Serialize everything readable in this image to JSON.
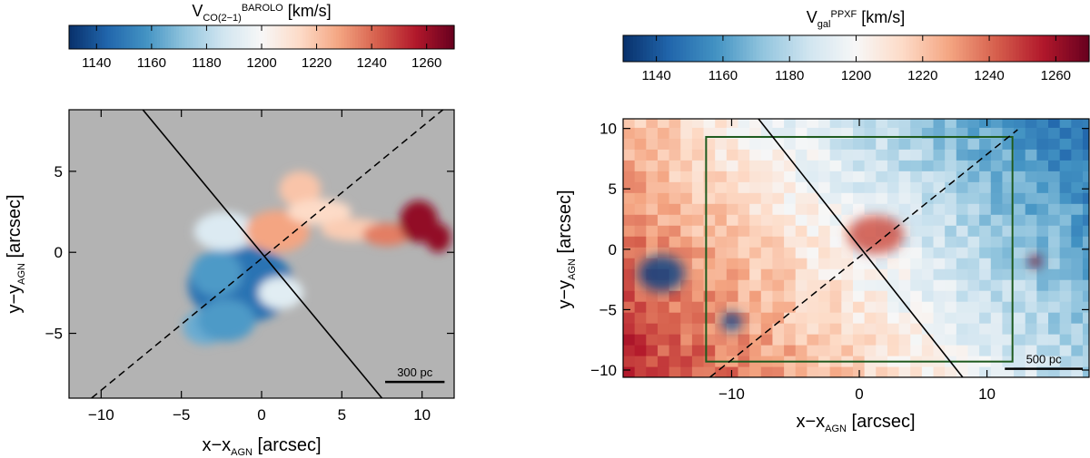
{
  "colors": {
    "cmap": [
      "#08306b",
      "#2166ac",
      "#4393c3",
      "#92c5de",
      "#d1e5f0",
      "#f7f7f7",
      "#fddbc7",
      "#f4a582",
      "#d6604d",
      "#b2182b",
      "#67001f"
    ],
    "background_left": "#b3b3b3",
    "box": "#1e5a1e"
  },
  "chart_data": [
    {
      "type": "heatmap",
      "panel": "left",
      "colorbar": {
        "title_main": "V",
        "title_sub": "CO(2−1)",
        "title_sup": "BAROLO",
        "title_unit": " [km/s]",
        "range": [
          1130,
          1270
        ],
        "ticks": [
          1140,
          1160,
          1180,
          1200,
          1220,
          1240,
          1260
        ],
        "tick_labels": [
          "1140",
          "1160",
          "1180",
          "1200",
          "1220",
          "1240",
          "1260"
        ]
      },
      "xlabel": {
        "main": "x−x",
        "sub": "AGN",
        "unit": " [arcsec]"
      },
      "ylabel": {
        "main": "y−y",
        "sub": "AGN",
        "unit": " [arcsec]"
      },
      "xlim": [
        -12,
        12
      ],
      "ylim": [
        -9,
        8.8
      ],
      "xticks": [
        -10,
        -5,
        0,
        5,
        10
      ],
      "xtick_labels": [
        "−10",
        "−5",
        "0",
        "5",
        "10"
      ],
      "yticks": [
        -5,
        0,
        5
      ],
      "ytick_labels": [
        "−5",
        "0",
        "5"
      ],
      "solid_line": [
        [
          -7.4,
          8.8
        ],
        [
          7.5,
          -9.0
        ]
      ],
      "dashed_line": [
        [
          -10.6,
          -9.0
        ],
        [
          11.3,
          8.8
        ]
      ],
      "scalebar": {
        "label": "300 pc",
        "x_range": [
          7.7,
          11.4
        ],
        "y": -8.0
      },
      "blobs": [
        {
          "x": -1.3,
          "y": -2.0,
          "rx": 3.3,
          "ry": 2.4,
          "value": 1148
        },
        {
          "x": -2.8,
          "y": -1.3,
          "rx": 1.6,
          "ry": 1.4,
          "value": 1160
        },
        {
          "x": -3.5,
          "y": -4.6,
          "rx": 1.4,
          "ry": 1.1,
          "value": 1165
        },
        {
          "x": -2.2,
          "y": -4.2,
          "rx": 1.8,
          "ry": 1.3,
          "value": 1160
        },
        {
          "x": 1.2,
          "y": -2.5,
          "rx": 1.4,
          "ry": 1.0,
          "value": 1192
        },
        {
          "x": -2.3,
          "y": 1.3,
          "rx": 1.9,
          "ry": 1.2,
          "value": 1190
        },
        {
          "x": 1.0,
          "y": 1.3,
          "rx": 2.0,
          "ry": 1.3,
          "value": 1228
        },
        {
          "x": 2.4,
          "y": 3.9,
          "rx": 1.3,
          "ry": 1.1,
          "value": 1220
        },
        {
          "x": 3.6,
          "y": 2.5,
          "rx": 2.0,
          "ry": 0.8,
          "value": 1214
        },
        {
          "x": 5.7,
          "y": 1.4,
          "rx": 2.0,
          "ry": 0.7,
          "value": 1218
        },
        {
          "x": 7.8,
          "y": 1.1,
          "rx": 1.5,
          "ry": 0.7,
          "value": 1236
        },
        {
          "x": 9.8,
          "y": 1.9,
          "rx": 1.2,
          "ry": 1.3,
          "value": 1262
        },
        {
          "x": 11.0,
          "y": 0.9,
          "rx": 0.8,
          "ry": 0.9,
          "value": 1262
        }
      ]
    },
    {
      "type": "heatmap",
      "panel": "right",
      "colorbar": {
        "title_main": "V",
        "title_sub": "gal",
        "title_sup": "PPXF",
        "title_unit": " [km/s]",
        "range": [
          1130,
          1270
        ],
        "ticks": [
          1140,
          1160,
          1180,
          1200,
          1220,
          1240,
          1260
        ],
        "tick_labels": [
          "1140",
          "1160",
          "1180",
          "1200",
          "1220",
          "1240",
          "1260"
        ]
      },
      "xlabel": {
        "main": "x−x",
        "sub": "AGN",
        "unit": " [arcsec]"
      },
      "ylabel": {
        "main": "y−y",
        "sub": "AGN",
        "unit": " [arcsec]"
      },
      "xlim": [
        -18.5,
        18.0
      ],
      "ylim": [
        -10.6,
        10.8
      ],
      "xticks": [
        -10,
        0,
        10
      ],
      "xtick_labels": [
        "−10",
        "0",
        "10"
      ],
      "yticks": [
        -10,
        -5,
        0,
        5,
        10
      ],
      "ytick_labels": [
        "−10",
        "−5",
        "0",
        "5",
        "10"
      ],
      "solid_line": [
        [
          -7.9,
          10.8
        ],
        [
          8.1,
          -10.6
        ]
      ],
      "dashed_line": [
        [
          -11.7,
          -10.6
        ],
        [
          12.4,
          9.9
        ]
      ],
      "box": {
        "x": [
          -12,
          12
        ],
        "y": [
          -9.3,
          9.3
        ]
      },
      "scalebar": {
        "label": "500 pc",
        "x_range": [
          11.4,
          17.5
        ],
        "y": -9.9
      },
      "hotspots": [
        {
          "x": 1.3,
          "y": 1.2,
          "rx": 2.2,
          "ry": 1.6,
          "value": 1245
        },
        {
          "x": 13.8,
          "y": -1.0,
          "rx": 0.5,
          "ry": 0.5,
          "value": 1268
        },
        {
          "x": -15.5,
          "y": -2.0,
          "rx": 1.8,
          "ry": 1.5,
          "value": 1135
        },
        {
          "x": -10.0,
          "y": -6.0,
          "rx": 0.8,
          "ry": 0.8,
          "value": 1138
        }
      ]
    }
  ]
}
